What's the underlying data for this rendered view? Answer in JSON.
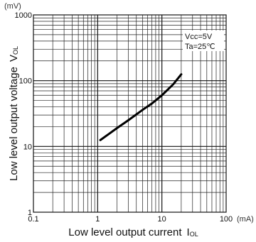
{
  "chart_data": {
    "type": "line",
    "x_scale": "log",
    "y_scale": "log",
    "xlim": [
      0.1,
      100
    ],
    "ylim": [
      1,
      1000
    ],
    "x_unit": "(mA)",
    "y_unit": "(mV)",
    "xlabel_main": "Low level output current",
    "xlabel_symbol": "I",
    "xlabel_sub": "OL",
    "ylabel_main": "Low level output voltage",
    "ylabel_symbol": "V",
    "ylabel_sub": "OL",
    "x_ticks": [
      {
        "value": 0.1,
        "label": "0.1"
      },
      {
        "value": 1,
        "label": "1"
      },
      {
        "value": 10,
        "label": "10"
      },
      {
        "value": 100,
        "label": "100"
      }
    ],
    "y_ticks": [
      {
        "value": 1,
        "label": "1"
      },
      {
        "value": 10,
        "label": "10"
      },
      {
        "value": 100,
        "label": "100"
      },
      {
        "value": 1000,
        "label": "1000"
      }
    ],
    "grid": true,
    "annotations": [
      "Vcc=5V",
      "Ta=25℃"
    ],
    "series": [
      {
        "x": [
          1.1,
          1.5,
          2,
          3,
          5,
          7,
          10,
          15,
          20
        ],
        "y": [
          12.5,
          15.5,
          19,
          25,
          36,
          45,
          60,
          88,
          125
        ]
      }
    ]
  }
}
